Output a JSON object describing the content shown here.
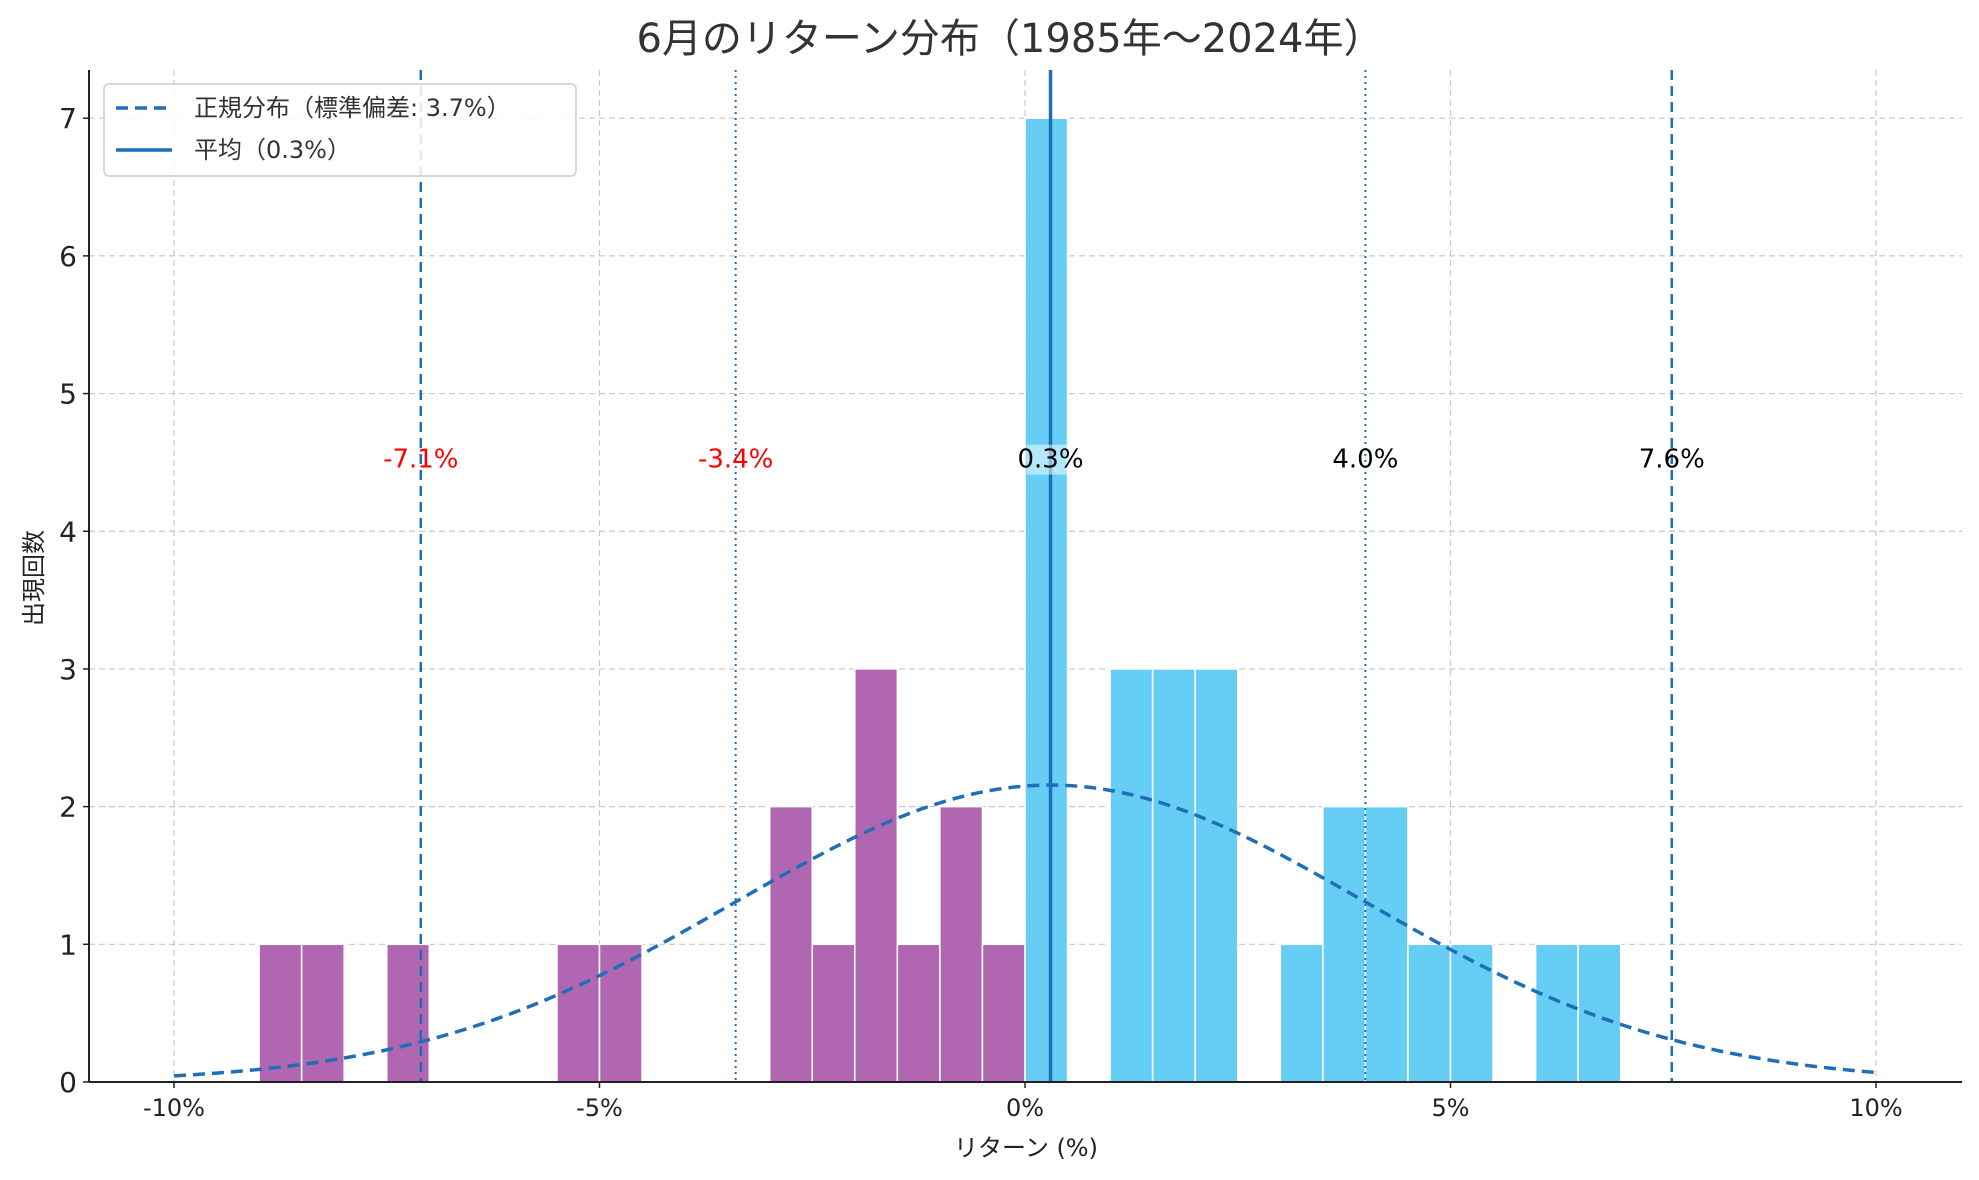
{
  "chart_data": {
    "type": "bar",
    "title": "6月のリターン分布（1985年〜2024年）",
    "xlabel": "リターン (%)",
    "ylabel": "出現回数",
    "xlim": [
      -12,
      22
    ],
    "ylim": [
      0,
      7.35
    ],
    "x_ticks": [
      {
        "value": -10,
        "label": "-10%"
      },
      {
        "value": -5,
        "label": "-5%"
      },
      {
        "value": 0,
        "label": "0%"
      },
      {
        "value": 5,
        "label": "5%"
      },
      {
        "value": 10,
        "label": "10%"
      }
    ],
    "y_ticks": [
      0,
      1,
      2,
      3,
      4,
      5,
      6,
      7
    ],
    "grid": true,
    "bin_width": 0.5,
    "bins": [
      {
        "x0": -9.0,
        "count": 1
      },
      {
        "x0": -8.5,
        "count": 1
      },
      {
        "x0": -7.5,
        "count": 1
      },
      {
        "x0": -5.5,
        "count": 1
      },
      {
        "x0": -5.0,
        "count": 1
      },
      {
        "x0": -3.0,
        "count": 2
      },
      {
        "x0": -2.5,
        "count": 1
      },
      {
        "x0": -2.0,
        "count": 3
      },
      {
        "x0": -1.5,
        "count": 1
      },
      {
        "x0": -1.0,
        "count": 2
      },
      {
        "x0": -0.5,
        "count": 1
      },
      {
        "x0": 0.0,
        "count": 7
      },
      {
        "x0": 1.0,
        "count": 3
      },
      {
        "x0": 1.5,
        "count": 3
      },
      {
        "x0": 2.0,
        "count": 3
      },
      {
        "x0": 3.0,
        "count": 1
      },
      {
        "x0": 3.5,
        "count": 2
      },
      {
        "x0": 4.0,
        "count": 2
      },
      {
        "x0": 4.5,
        "count": 1
      },
      {
        "x0": 5.0,
        "count": 1
      },
      {
        "x0": 6.0,
        "count": 1
      },
      {
        "x0": 6.5,
        "count": 1
      }
    ],
    "mean": 0.3,
    "std": 3.7,
    "sample_size": 40,
    "normal_x_range": [
      -10,
      10
    ],
    "reference_lines": [
      {
        "x": -7.1,
        "label": "-7.1%",
        "style": "dashed"
      },
      {
        "x": -3.4,
        "label": "-3.4%",
        "style": "dotted"
      },
      {
        "x": 0.3,
        "label": "0.3%",
        "style": "solid"
      },
      {
        "x": 4.0,
        "label": "4.0%",
        "style": "dotted"
      },
      {
        "x": 7.6,
        "label": "7.6%",
        "style": "dashed"
      }
    ],
    "legend": {
      "placement": "top-left",
      "entries": [
        {
          "label": "正規分布（標準偏差: 3.7%）",
          "style": "dashed"
        },
        {
          "label": "平均（0.3%）",
          "style": "solid"
        }
      ]
    },
    "colors": {
      "negative_bar": "#b066b0",
      "positive_bar": "#66cef5",
      "line": "#1f6fb8",
      "negative_text": "#ff0000",
      "positive_text": "#000000",
      "grid": "#c8c8c8"
    }
  }
}
